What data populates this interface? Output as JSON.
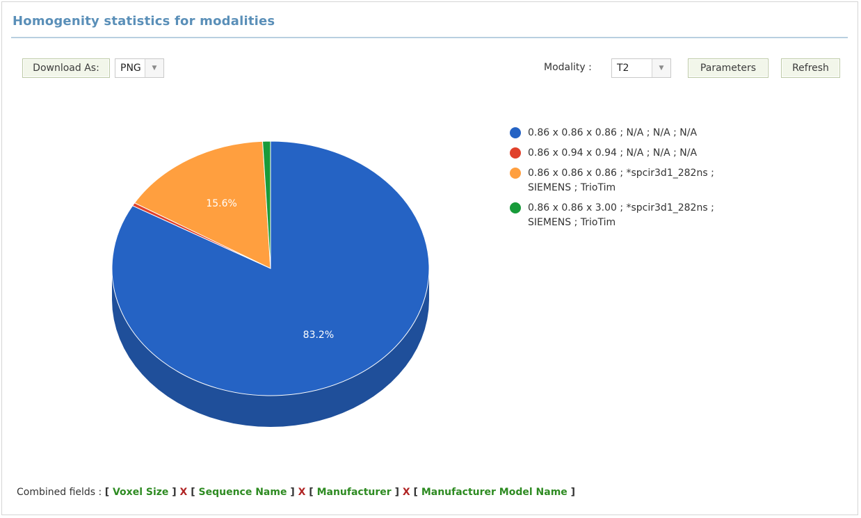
{
  "panel": {
    "title": "Homogenity statistics for modalities"
  },
  "toolbar": {
    "download_label": "Download As:",
    "format_value": "PNG",
    "modality_label": "Modality :",
    "modality_value": "T2",
    "parameters_label": "Parameters",
    "refresh_label": "Refresh"
  },
  "chart_data": {
    "type": "pie",
    "title": "",
    "slices": [
      {
        "label": "0.86 x 0.86 x 0.86 ; N/A ; N/A ; N/A",
        "value": 83.2,
        "color": "#2563c4",
        "side": "#1f4f9a",
        "show_label": "83.2%"
      },
      {
        "label": "0.86 x 0.94 x 0.94 ; N/A ; N/A ; N/A",
        "value": 0.4,
        "color": "#e0412b",
        "side": "#b5331f",
        "show_label": ""
      },
      {
        "label": "0.86 x 0.86 x 0.86 ; *spcir3d1_282ns ; SIEMENS ; TrioTim",
        "value": 15.6,
        "color": "#ff9f3f",
        "side": "#d98332",
        "show_label": "15.6%"
      },
      {
        "label": "0.86 x 0.86 x 3.00 ; *spcir3d1_282ns ; SIEMENS ; TrioTim",
        "value": 0.8,
        "color": "#189b3a",
        "side": "#127a2d",
        "show_label": ""
      }
    ],
    "legend_position": "right"
  },
  "footer": {
    "prefix": "Combined fields : ",
    "fields": [
      "Voxel Size",
      "Sequence Name",
      "Manufacturer",
      "Manufacturer Model Name"
    ],
    "separator": "X"
  }
}
